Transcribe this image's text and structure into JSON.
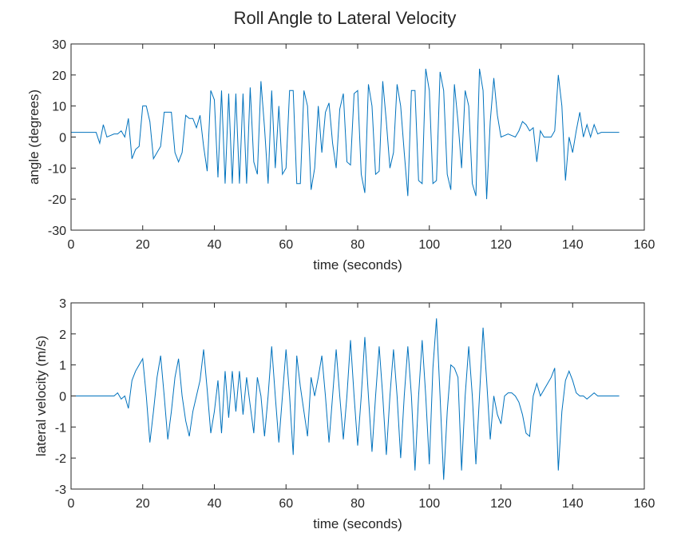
{
  "title": "Roll Angle to Lateral Velocity",
  "chart_data": [
    {
      "type": "line",
      "xlabel": "time (seconds)",
      "ylabel": "angle (degrees)",
      "xlim": [
        0,
        160
      ],
      "xticks": [
        0,
        20,
        40,
        60,
        80,
        100,
        120,
        140,
        160
      ],
      "ylim": [
        -30,
        30
      ],
      "yticks": [
        -30,
        -20,
        -10,
        0,
        10,
        20,
        30
      ],
      "color": "#0072bd",
      "x": [
        0,
        1,
        2,
        3,
        4,
        5,
        6,
        7,
        8,
        9,
        10,
        11,
        12,
        13,
        14,
        15,
        16,
        17,
        18,
        19,
        20,
        21,
        22,
        23,
        24,
        25,
        26,
        27,
        28,
        29,
        30,
        31,
        32,
        33,
        34,
        35,
        36,
        37,
        38,
        39,
        40,
        41,
        42,
        43,
        44,
        45,
        46,
        47,
        48,
        49,
        50,
        51,
        52,
        53,
        54,
        55,
        56,
        57,
        58,
        59,
        60,
        61,
        62,
        63,
        64,
        65,
        66,
        67,
        68,
        69,
        70,
        71,
        72,
        73,
        74,
        75,
        76,
        77,
        78,
        79,
        80,
        81,
        82,
        83,
        84,
        85,
        86,
        87,
        88,
        89,
        90,
        91,
        92,
        93,
        94,
        95,
        96,
        97,
        98,
        99,
        100,
        101,
        102,
        103,
        104,
        105,
        106,
        107,
        108,
        109,
        110,
        111,
        112,
        113,
        114,
        115,
        116,
        117,
        118,
        119,
        120,
        121,
        122,
        123,
        124,
        125,
        126,
        127,
        128,
        129,
        130,
        131,
        132,
        133,
        134,
        135,
        136,
        137,
        138,
        139,
        140,
        141,
        142,
        143,
        144,
        145,
        146,
        147,
        148,
        149,
        150,
        151,
        152,
        153
      ],
      "values": [
        1.5,
        1.5,
        1.5,
        1.5,
        1.5,
        1.5,
        1.5,
        1.5,
        -2,
        4,
        0,
        0.5,
        1,
        1,
        2,
        0,
        6,
        -7,
        -4,
        -3,
        10,
        10,
        5,
        -7,
        -5,
        -3,
        8,
        8,
        8,
        -5,
        -8,
        -5,
        7,
        6,
        6,
        3,
        7,
        -3,
        -11,
        15,
        12,
        -13,
        15,
        -15,
        14,
        -15,
        14,
        -15,
        14,
        -15,
        16,
        -8,
        -12,
        18,
        3,
        -15,
        15,
        -10,
        10,
        -12,
        -10,
        15,
        15,
        -15,
        -15,
        15,
        10,
        -17,
        -10,
        10,
        -5,
        8,
        11,
        -2,
        -10,
        9,
        14,
        -8,
        -9,
        14,
        15,
        -12,
        -18,
        17,
        10,
        -12,
        -11,
        18,
        5,
        -10,
        -5,
        17,
        10,
        -5,
        -19,
        15,
        15,
        -14,
        -15,
        22,
        15,
        -15,
        -14,
        21,
        15,
        -12,
        -17,
        17,
        5,
        -10,
        15,
        10,
        -15,
        -19,
        22,
        15,
        -20,
        5,
        19,
        7,
        0,
        0.5,
        1,
        0.5,
        0,
        2,
        5,
        4,
        2,
        3,
        -8,
        2,
        0,
        0,
        0,
        2,
        20,
        10,
        -14,
        0,
        -5,
        2,
        8,
        0,
        4,
        0,
        4,
        1,
        1.5,
        1.5,
        1.5,
        1.5,
        1.5,
        1.5
      ]
    },
    {
      "type": "line",
      "xlabel": "time (seconds)",
      "ylabel": "lateral velocity (m/s)",
      "xlim": [
        0,
        160
      ],
      "xticks": [
        0,
        20,
        40,
        60,
        80,
        100,
        120,
        140,
        160
      ],
      "ylim": [
        -3,
        3
      ],
      "yticks": [
        -3,
        -2,
        -1,
        0,
        1,
        2,
        3
      ],
      "color": "#0072bd",
      "x": [
        0,
        1,
        2,
        3,
        4,
        5,
        6,
        7,
        8,
        9,
        10,
        11,
        12,
        13,
        14,
        15,
        16,
        17,
        18,
        19,
        20,
        21,
        22,
        23,
        24,
        25,
        26,
        27,
        28,
        29,
        30,
        31,
        32,
        33,
        34,
        35,
        36,
        37,
        38,
        39,
        40,
        41,
        42,
        43,
        44,
        45,
        46,
        47,
        48,
        49,
        50,
        51,
        52,
        53,
        54,
        55,
        56,
        57,
        58,
        59,
        60,
        61,
        62,
        63,
        64,
        65,
        66,
        67,
        68,
        69,
        70,
        71,
        72,
        73,
        74,
        75,
        76,
        77,
        78,
        79,
        80,
        81,
        82,
        83,
        84,
        85,
        86,
        87,
        88,
        89,
        90,
        91,
        92,
        93,
        94,
        95,
        96,
        97,
        98,
        99,
        100,
        101,
        102,
        103,
        104,
        105,
        106,
        107,
        108,
        109,
        110,
        111,
        112,
        113,
        114,
        115,
        116,
        117,
        118,
        119,
        120,
        121,
        122,
        123,
        124,
        125,
        126,
        127,
        128,
        129,
        130,
        131,
        132,
        133,
        134,
        135,
        136,
        137,
        138,
        139,
        140,
        141,
        142,
        143,
        144,
        145,
        146,
        147,
        148,
        149,
        150,
        151,
        152,
        153
      ],
      "values": [
        0,
        0,
        0,
        0,
        0,
        0,
        0,
        0,
        0,
        0,
        0,
        0,
        0,
        0.1,
        -0.1,
        0,
        -0.4,
        0.5,
        0.8,
        1.0,
        1.2,
        0,
        -1.5,
        -0.5,
        0.6,
        1.3,
        0,
        -1.4,
        -0.5,
        0.6,
        1.2,
        0,
        -0.8,
        -1.3,
        -0.5,
        0,
        0.5,
        1.5,
        0.2,
        -1.2,
        -0.5,
        0.5,
        -1.2,
        0.8,
        -0.7,
        0.8,
        -0.5,
        0.8,
        -0.6,
        0.6,
        -0.3,
        -1.2,
        0.6,
        0,
        -1.3,
        0,
        1.6,
        0,
        -1.5,
        0,
        1.5,
        0,
        -1.9,
        1.3,
        0.3,
        -0.5,
        -1.3,
        0.6,
        0,
        0.6,
        1.3,
        0,
        -1.5,
        0,
        1.5,
        0,
        -1.4,
        0,
        1.8,
        0,
        -1.6,
        0,
        1.9,
        0,
        -1.8,
        0,
        1.6,
        0,
        -1.9,
        0,
        1.5,
        0,
        -2.0,
        0,
        1.6,
        0,
        -2.4,
        0,
        1.8,
        0,
        -2.2,
        0.9,
        2.5,
        0,
        -2.7,
        -0.5,
        1.0,
        0.9,
        0.6,
        -2.4,
        0,
        1.6,
        0,
        -2.2,
        0,
        2.2,
        0.5,
        -1.4,
        0,
        -0.6,
        -0.9,
        0,
        0.1,
        0.1,
        0,
        -0.2,
        -0.6,
        -1.2,
        -1.3,
        0,
        0.4,
        0,
        0.2,
        0.4,
        0.6,
        0.9,
        -2.4,
        -0.5,
        0.5,
        0.8,
        0.5,
        0.1,
        0,
        0,
        -0.1,
        0,
        0.1,
        0,
        0,
        0,
        0,
        0,
        0,
        0
      ]
    }
  ]
}
